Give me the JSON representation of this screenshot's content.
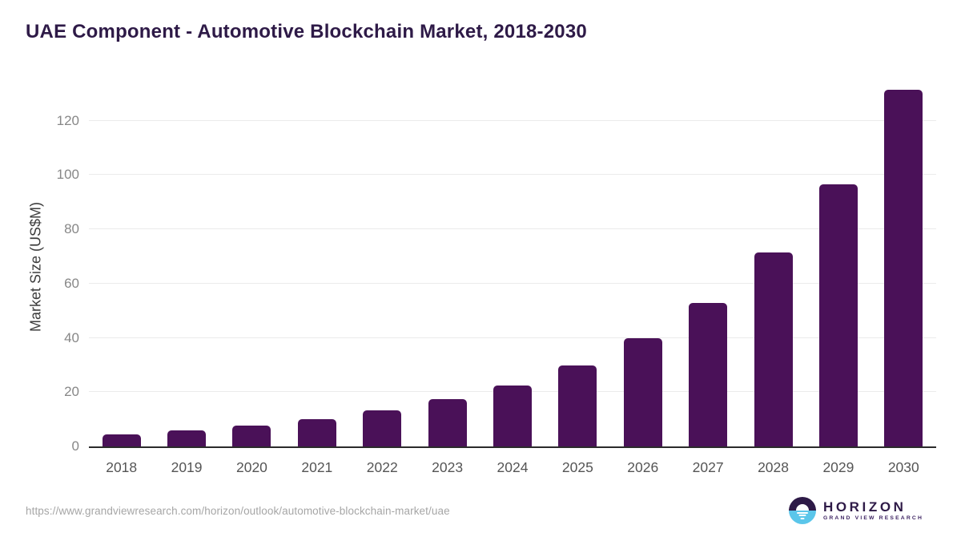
{
  "page": {
    "title": "UAE Component - Automotive Blockchain Market, 2018-2030",
    "source_url": "https://www.grandviewresearch.com/horizon/outlook/automotive-blockchain-market/uae"
  },
  "logo": {
    "name": "HORIZON",
    "subtitle": "GRAND VIEW RESEARCH"
  },
  "colors": {
    "bar": "#4a1158",
    "title": "#2e1a47",
    "axis_line": "#2b2b2b",
    "gridline": "#ebebeb",
    "y_tick": "#878787",
    "x_tick": "#555555",
    "axis_title": "#3d3d3d",
    "source": "#a6a6a6",
    "logo_purple": "#2e1a47",
    "logo_blue": "#5bc6ea"
  },
  "chart_data": {
    "type": "bar",
    "title": "UAE Component - Automotive Blockchain Market, 2018-2030",
    "xlabel": "",
    "ylabel": "Market Size (US$M)",
    "categories": [
      "2018",
      "2019",
      "2020",
      "2021",
      "2022",
      "2023",
      "2024",
      "2025",
      "2026",
      "2027",
      "2028",
      "2029",
      "2030"
    ],
    "values": [
      4.5,
      5.8,
      7.8,
      10.0,
      13.2,
      17.3,
      22.5,
      29.7,
      39.8,
      53.0,
      71.5,
      96.5,
      131.5
    ],
    "yticks": [
      0,
      20,
      40,
      60,
      80,
      100,
      120
    ],
    "ylim": [
      0,
      132
    ],
    "grid": "horizontal",
    "legend": "none",
    "bar_color": "#4a1158"
  }
}
